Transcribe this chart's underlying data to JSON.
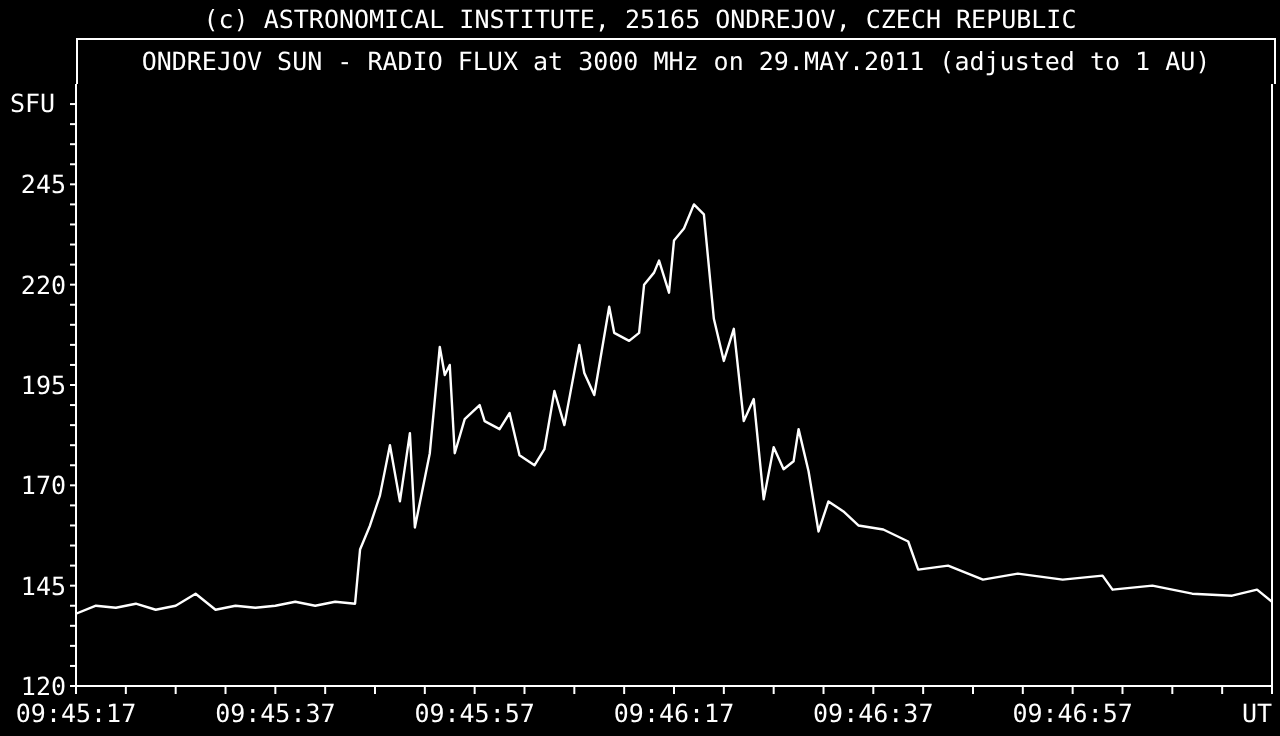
{
  "chart_data": {
    "type": "line",
    "title": "ONDREJOV SUN - RADIO FLUX at 3000 MHz on 29.MAY.2011 (adjusted to 1 AU)",
    "subtitle": "(c) ASTRONOMICAL INSTITUTE, 25165 ONDREJOV, CZECH REPUBLIC",
    "ylabel": "SFU",
    "x": [
      9.754722,
      9.755278,
      9.755833,
      9.756389,
      9.756944,
      9.7575,
      9.758056,
      9.758611,
      9.759167,
      9.759722,
      9.760278,
      9.760833,
      9.761389,
      9.761944,
      9.7625,
      9.762639,
      9.762917,
      9.763194,
      9.763472,
      9.76375,
      9.764028,
      9.764167,
      9.764583,
      9.764861,
      9.765,
      9.765139,
      9.765278,
      9.765556,
      9.765972,
      9.766111,
      9.766528,
      9.766806,
      9.767083,
      9.7675,
      9.767778,
      9.768056,
      9.768333,
      9.76875,
      9.768889,
      9.769167,
      9.769583,
      9.769722,
      9.770139,
      9.770417,
      9.770556,
      9.770833,
      9.770972,
      9.77125,
      9.771389,
      9.771667,
      9.771944,
      9.772222,
      9.7725,
      9.772778,
      9.773056,
      9.773333,
      9.773611,
      9.773889,
      9.774167,
      9.774444,
      9.774722,
      9.774861,
      9.775139,
      9.775417,
      9.775694,
      9.776111,
      9.776528,
      9.777222,
      9.777917,
      9.778194,
      9.779028,
      9.78,
      9.780972,
      9.782222,
      9.783333,
      9.783611,
      9.784722,
      9.785833,
      9.786944,
      9.787639,
      9.788056
    ],
    "series": [
      {
        "color": "#ffffff",
        "values": [
          138,
          140,
          139.5,
          140.5,
          139,
          140,
          143,
          139,
          140,
          139.5,
          140,
          141,
          140,
          141,
          140.5,
          154,
          160,
          167.5,
          180,
          166,
          183,
          159.5,
          178,
          204.5,
          197.5,
          200,
          178,
          186.5,
          190,
          186,
          184,
          188,
          177.5,
          175,
          179,
          193.5,
          185,
          205,
          198,
          192.5,
          214.5,
          208,
          206,
          208,
          220,
          223,
          226,
          218,
          231,
          234,
          240,
          237.5,
          211.5,
          201,
          209,
          186,
          191.5,
          166.5,
          179.5,
          174,
          176,
          184,
          173.5,
          158.5,
          166,
          163.5,
          160,
          159,
          156,
          149,
          150,
          146.5,
          148,
          146.5,
          147.5,
          144,
          145,
          143,
          142.5,
          144,
          141
        ]
      }
    ],
    "xlim": [
      9.754722,
      9.788056
    ],
    "xticks": [
      {
        "value": 9.754722,
        "label": "09:45:17"
      },
      {
        "value": 9.756111,
        "label": null
      },
      {
        "value": 9.7575,
        "label": null
      },
      {
        "value": 9.758889,
        "label": null
      },
      {
        "value": 9.760278,
        "label": "09:45:37"
      },
      {
        "value": 9.761667,
        "label": null
      },
      {
        "value": 9.763056,
        "label": null
      },
      {
        "value": 9.764444,
        "label": null
      },
      {
        "value": 9.765833,
        "label": "09:45:57"
      },
      {
        "value": 9.767222,
        "label": null
      },
      {
        "value": 9.768611,
        "label": null
      },
      {
        "value": 9.77,
        "label": null
      },
      {
        "value": 9.771389,
        "label": "09:46:17"
      },
      {
        "value": 9.772778,
        "label": null
      },
      {
        "value": 9.774167,
        "label": null
      },
      {
        "value": 9.775556,
        "label": null
      },
      {
        "value": 9.776944,
        "label": "09:46:37"
      },
      {
        "value": 9.778333,
        "label": null
      },
      {
        "value": 9.779722,
        "label": null
      },
      {
        "value": 9.781111,
        "label": null
      },
      {
        "value": 9.7825,
        "label": "09:46:57"
      },
      {
        "value": 9.783889,
        "label": null
      },
      {
        "value": 9.785278,
        "label": null
      },
      {
        "value": 9.786667,
        "label": null
      },
      {
        "value": 9.788056,
        "label": "UT"
      }
    ],
    "ylim": [
      120,
      270
    ],
    "yticks": [
      120,
      {
        "value": 125,
        "label": null
      },
      {
        "value": 130,
        "label": null
      },
      {
        "value": 135,
        "label": null
      },
      {
        "value": 140,
        "label": null
      },
      145,
      {
        "value": 150,
        "label": null
      },
      {
        "value": 155,
        "label": null
      },
      {
        "value": 160,
        "label": null
      },
      {
        "value": 165,
        "label": null
      },
      170,
      {
        "value": 175,
        "label": null
      },
      {
        "value": 180,
        "label": null
      },
      {
        "value": 185,
        "label": null
      },
      {
        "value": 190,
        "label": null
      },
      195,
      {
        "value": 200,
        "label": null
      },
      {
        "value": 205,
        "label": null
      },
      {
        "value": 210,
        "label": null
      },
      {
        "value": 215,
        "label": null
      },
      220,
      {
        "value": 225,
        "label": null
      },
      {
        "value": 230,
        "label": null
      },
      {
        "value": 235,
        "label": null
      },
      {
        "value": 240,
        "label": null
      },
      245,
      {
        "value": 250,
        "label": null
      },
      {
        "value": 255,
        "label": null
      },
      {
        "value": 260,
        "label": null
      },
      {
        "value": 265,
        "label": null
      }
    ],
    "grid": false,
    "legend": false,
    "marker": "none",
    "line_style": "solid"
  }
}
